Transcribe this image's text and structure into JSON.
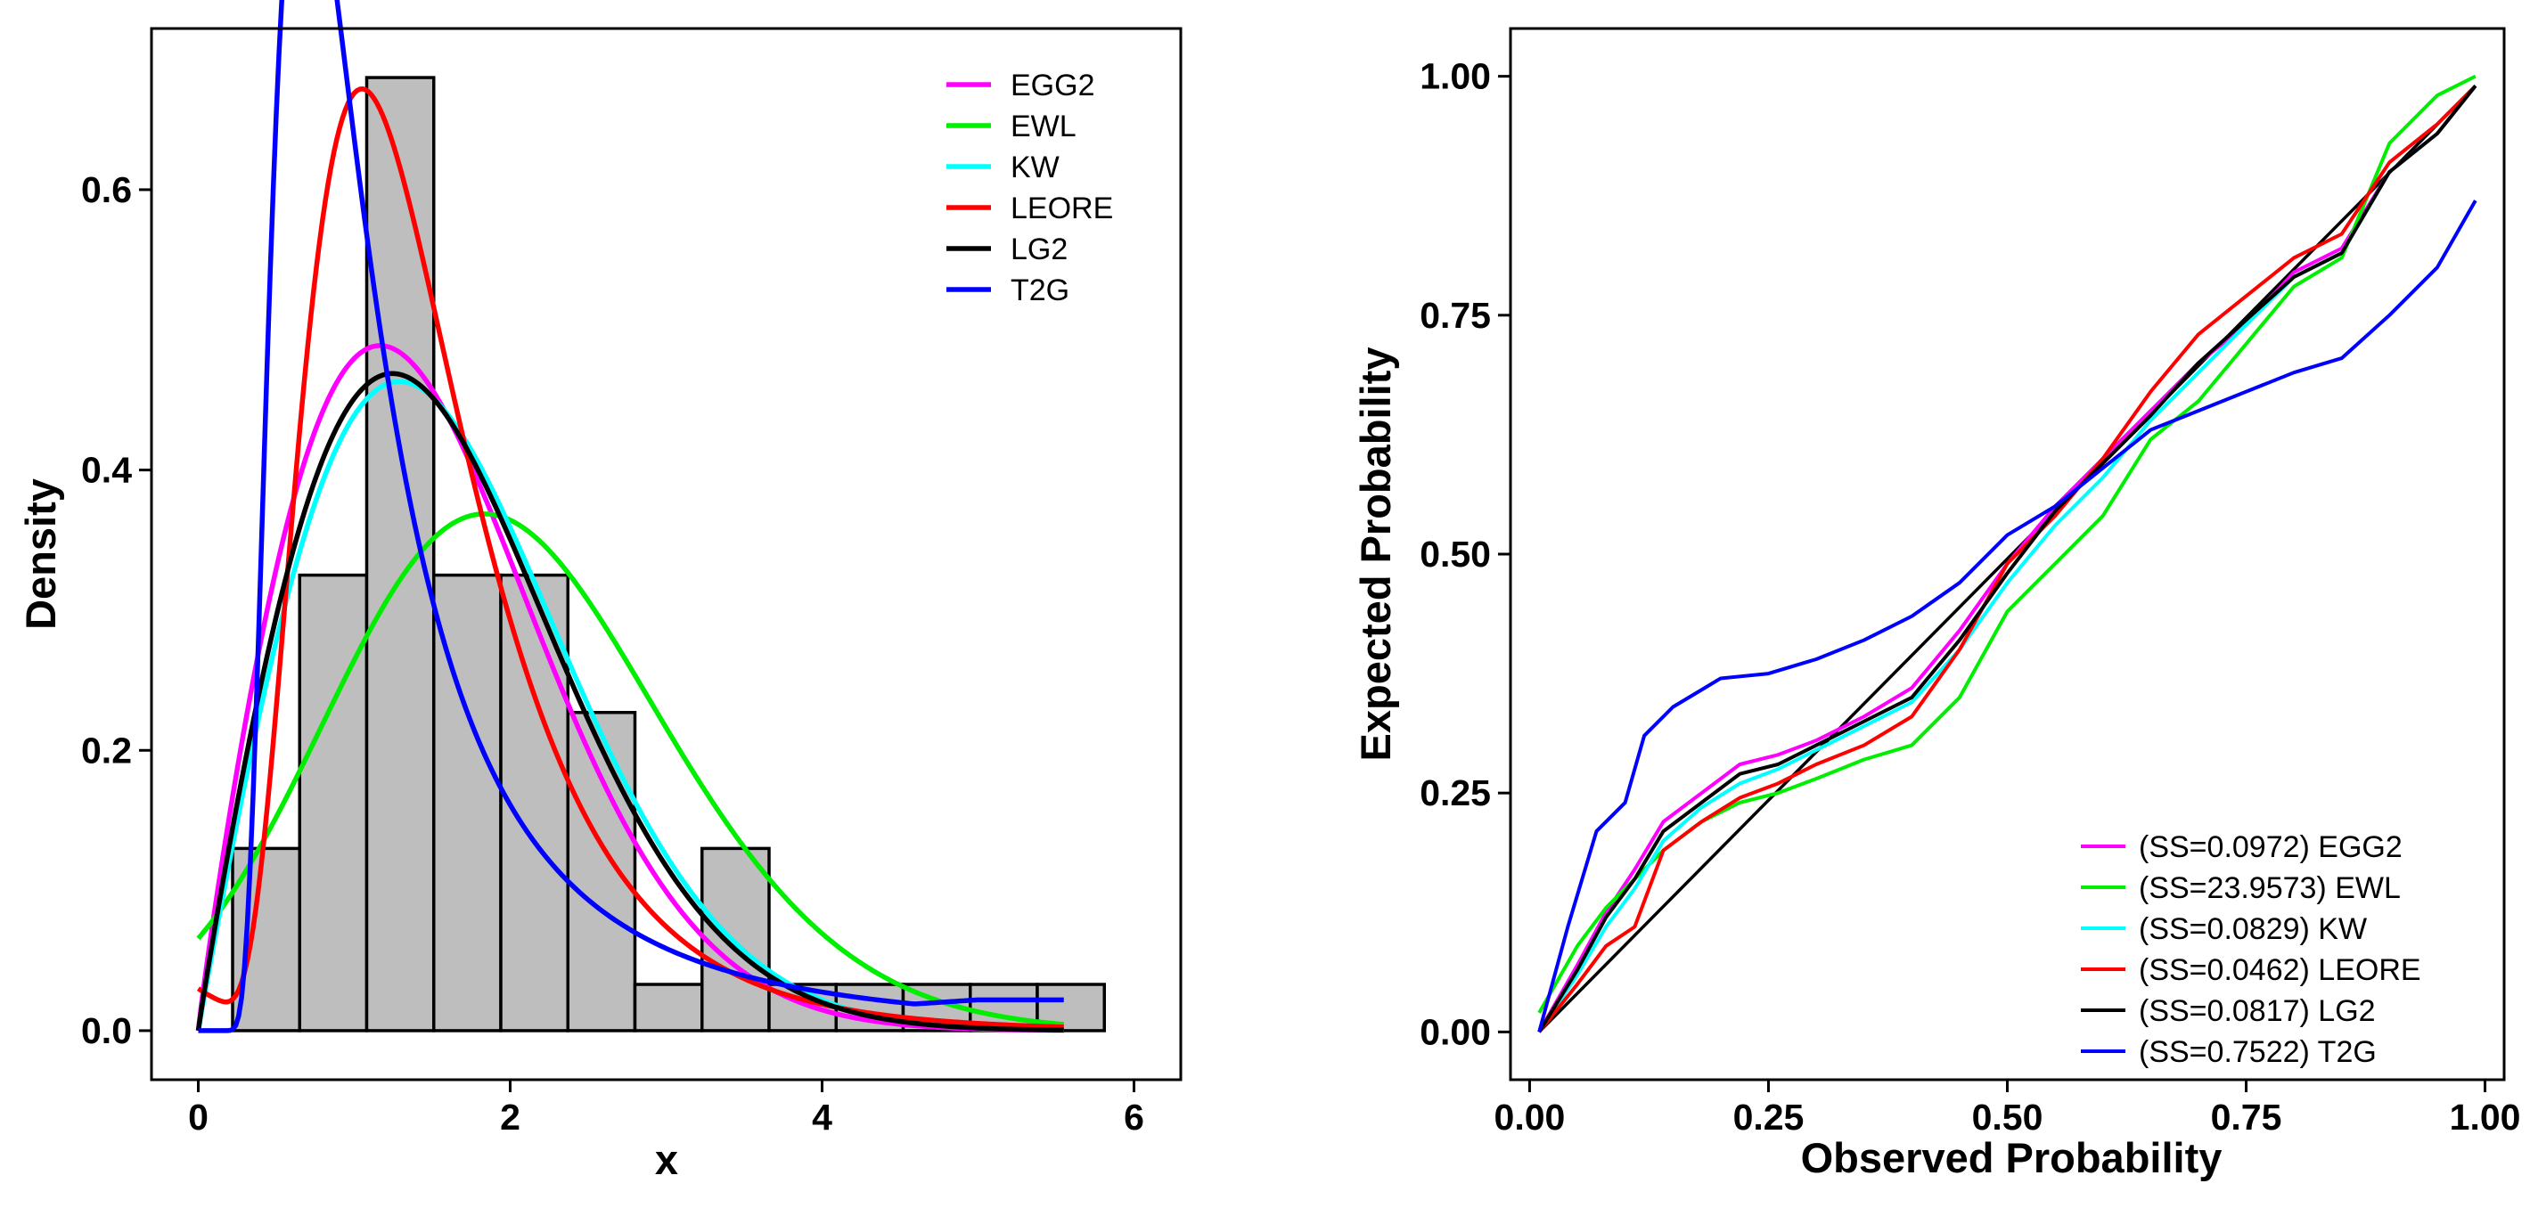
{
  "chart_data": [
    {
      "type": "histogram",
      "title": "",
      "xlabel": "x",
      "ylabel": "Density",
      "xlim": [
        -0.3,
        6.3
      ],
      "ylim": [
        -0.035,
        0.715
      ],
      "xticks": [
        0,
        2,
        4,
        6
      ],
      "xtick_labels": [
        "0",
        "2",
        "4",
        "6"
      ],
      "yticks": [
        0.0,
        0.2,
        0.4,
        0.6
      ],
      "ytick_labels": [
        "0.0",
        "0.2",
        "0.4",
        "0.6"
      ],
      "bin_edges": [
        0.22,
        0.65,
        1.08,
        1.51,
        1.94,
        2.37,
        2.8,
        3.23,
        3.66,
        4.09,
        4.52,
        4.95,
        5.38,
        5.81
      ],
      "bar_values": [
        0.13,
        0.325,
        0.68,
        0.325,
        0.325,
        0.227,
        0.033,
        0.13,
        0.033,
        0.033,
        0.033,
        0.033,
        0.033
      ],
      "bar_color": "#BEBEBE",
      "curve_x_max": 5.55,
      "legend_position": "top-right",
      "series": [
        {
          "name": "EGG2",
          "color": "#FF00FF",
          "model": "weibull",
          "shape": 1.92,
          "scale": 1.71,
          "zero_start": true
        },
        {
          "name": "EWL",
          "color": "#00EE00",
          "model": "skewnormal",
          "location": 1.05,
          "scale": 1.45,
          "alpha": 1.4
        },
        {
          "name": "KW",
          "color": "#00FFFF",
          "model": "weibull",
          "shape": 1.98,
          "scale": 1.84,
          "zero_start": true
        },
        {
          "name": "LEORE",
          "color": "#FF0000",
          "model": "lognormal",
          "mu": 0.3,
          "sigma": 0.5,
          "baseline": 0.03,
          "baseline_decay": 0.4
        },
        {
          "name": "LG2",
          "color": "#000000",
          "model": "weibull",
          "shape": 1.95,
          "scale": 1.8,
          "zero_start": true
        },
        {
          "name": "T2G",
          "color": "#0000FF",
          "model": "frechet",
          "shape": 1.78,
          "scale": 0.87,
          "zero_start": true,
          "floor": 0.022
        }
      ]
    },
    {
      "type": "line",
      "title": "",
      "xlabel": "Observed Probability",
      "ylabel": "Expected Probability",
      "xlim": [
        -0.02,
        1.02
      ],
      "ylim": [
        -0.05,
        1.05
      ],
      "xticks": [
        0.0,
        0.25,
        0.5,
        0.75,
        1.0
      ],
      "xtick_labels": [
        "0.00",
        "0.25",
        "0.50",
        "0.75",
        "1.00"
      ],
      "yticks": [
        0.0,
        0.25,
        0.5,
        0.75,
        1.0
      ],
      "ytick_labels": [
        "0.00",
        "0.25",
        "0.50",
        "0.75",
        "1.00"
      ],
      "reference_line": {
        "from": [
          0.01,
          0.0
        ],
        "to": [
          0.99,
          0.99
        ],
        "color": "#000000"
      },
      "legend_position": "bottom-right",
      "series": [
        {
          "name": "EGG2",
          "label": "(SS=0.0972) EGG2",
          "color": "#FF00FF",
          "x": [
            0.01,
            0.05,
            0.08,
            0.11,
            0.14,
            0.18,
            0.22,
            0.26,
            0.3,
            0.35,
            0.4,
            0.45,
            0.5,
            0.55,
            0.6,
            0.65,
            0.7,
            0.75,
            0.8,
            0.85,
            0.9,
            0.95,
            0.99
          ],
          "y": [
            0.0,
            0.07,
            0.125,
            0.17,
            0.22,
            0.25,
            0.28,
            0.29,
            0.305,
            0.33,
            0.36,
            0.42,
            0.49,
            0.55,
            0.6,
            0.65,
            0.7,
            0.74,
            0.795,
            0.82,
            0.9,
            0.94,
            0.99
          ]
        },
        {
          "name": "EWL",
          "label": "(SS=23.9573) EWL",
          "color": "#00EE00",
          "x": [
            0.01,
            0.05,
            0.08,
            0.11,
            0.14,
            0.18,
            0.22,
            0.26,
            0.3,
            0.35,
            0.4,
            0.45,
            0.5,
            0.55,
            0.6,
            0.65,
            0.7,
            0.75,
            0.8,
            0.85,
            0.9,
            0.95,
            0.99
          ],
          "y": [
            0.02,
            0.09,
            0.13,
            0.16,
            0.19,
            0.22,
            0.24,
            0.25,
            0.265,
            0.285,
            0.3,
            0.35,
            0.44,
            0.49,
            0.54,
            0.62,
            0.66,
            0.72,
            0.78,
            0.81,
            0.93,
            0.98,
            1.0
          ]
        },
        {
          "name": "KW",
          "label": "(SS=0.0829) KW",
          "color": "#00FFFF",
          "x": [
            0.01,
            0.05,
            0.08,
            0.11,
            0.14,
            0.18,
            0.22,
            0.26,
            0.3,
            0.35,
            0.4,
            0.45,
            0.5,
            0.55,
            0.6,
            0.65,
            0.7,
            0.75,
            0.8,
            0.85,
            0.9,
            0.95,
            0.99
          ],
          "y": [
            0.0,
            0.06,
            0.11,
            0.15,
            0.2,
            0.235,
            0.26,
            0.275,
            0.295,
            0.32,
            0.345,
            0.4,
            0.47,
            0.53,
            0.58,
            0.64,
            0.69,
            0.74,
            0.79,
            0.815,
            0.9,
            0.94,
            0.99
          ]
        },
        {
          "name": "LEORE",
          "label": "(SS=0.0462) LEORE",
          "color": "#FF0000",
          "x": [
            0.01,
            0.05,
            0.08,
            0.11,
            0.14,
            0.18,
            0.22,
            0.26,
            0.3,
            0.35,
            0.4,
            0.45,
            0.5,
            0.55,
            0.6,
            0.65,
            0.7,
            0.75,
            0.8,
            0.85,
            0.9,
            0.95,
            0.99
          ],
          "y": [
            0.0,
            0.05,
            0.09,
            0.11,
            0.19,
            0.22,
            0.245,
            0.26,
            0.28,
            0.3,
            0.33,
            0.4,
            0.49,
            0.54,
            0.6,
            0.67,
            0.73,
            0.77,
            0.81,
            0.835,
            0.91,
            0.95,
            0.99
          ]
        },
        {
          "name": "LG2",
          "label": "(SS=0.0817) LG2",
          "color": "#000000",
          "x": [
            0.01,
            0.05,
            0.08,
            0.11,
            0.14,
            0.18,
            0.22,
            0.26,
            0.3,
            0.35,
            0.4,
            0.45,
            0.5,
            0.55,
            0.6,
            0.65,
            0.7,
            0.75,
            0.8,
            0.85,
            0.9,
            0.95,
            0.99
          ],
          "y": [
            0.0,
            0.065,
            0.12,
            0.16,
            0.21,
            0.24,
            0.27,
            0.28,
            0.3,
            0.325,
            0.35,
            0.41,
            0.48,
            0.545,
            0.595,
            0.645,
            0.7,
            0.745,
            0.79,
            0.815,
            0.9,
            0.94,
            0.99
          ]
        },
        {
          "name": "T2G",
          "label": "(SS=0.7522) T2G",
          "color": "#0000FF",
          "x": [
            0.01,
            0.04,
            0.07,
            0.1,
            0.12,
            0.15,
            0.2,
            0.25,
            0.3,
            0.35,
            0.4,
            0.45,
            0.5,
            0.55,
            0.6,
            0.65,
            0.7,
            0.75,
            0.8,
            0.85,
            0.9,
            0.95,
            0.99
          ],
          "y": [
            0.0,
            0.11,
            0.21,
            0.24,
            0.31,
            0.34,
            0.37,
            0.375,
            0.39,
            0.41,
            0.435,
            0.47,
            0.52,
            0.55,
            0.59,
            0.63,
            0.65,
            0.67,
            0.69,
            0.705,
            0.75,
            0.8,
            0.87
          ]
        }
      ]
    }
  ]
}
